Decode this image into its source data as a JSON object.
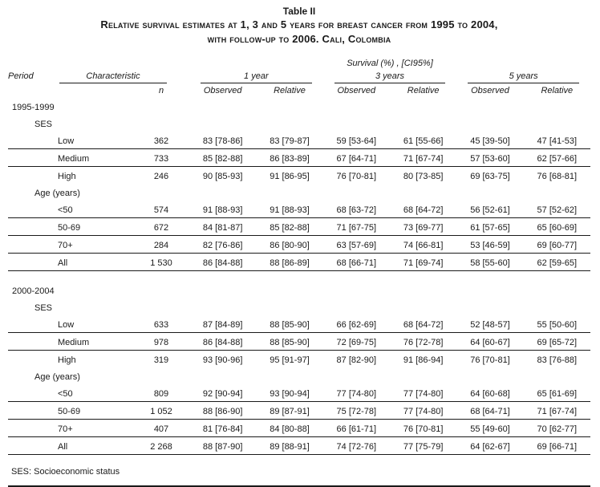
{
  "title": {
    "table_label": "Table II",
    "caption_line1": "Relative survival estimates at 1, 3 and 5 years for breast cancer from 1995 to 2004,",
    "caption_line2": "with follow-up to 2006. Cali, Colombia"
  },
  "header": {
    "survival_units": "Survival (%) , [CI95%]",
    "period": "Period",
    "characteristic": "Characteristic",
    "n": "n",
    "year_groups": [
      "1 year",
      "3 years",
      "5 years"
    ],
    "observed": "Observed",
    "relative": "Relative"
  },
  "sections": [
    {
      "period": "1995-1999",
      "groups": [
        {
          "label": "SES",
          "rows": [
            {
              "characteristic": "Low",
              "n": "362",
              "values": [
                "83 [78-86]",
                "83 [79-87]",
                "59 [53-64]",
                "61 [55-66]",
                "45 [39-50]",
                "47 [41-53]"
              ]
            },
            {
              "characteristic": "Medium",
              "n": "733",
              "values": [
                "85 [82-88]",
                "86 [83-89]",
                "67 [64-71]",
                "71 [67-74]",
                "57 [53-60]",
                "62 [57-66]"
              ]
            },
            {
              "characteristic": "High",
              "n": "246",
              "values": [
                "90 [85-93]",
                "91 [86-95]",
                "76 [70-81]",
                "80 [73-85]",
                "69 [63-75]",
                "76 [68-81]"
              ]
            }
          ]
        },
        {
          "label": "Age (years)",
          "rows": [
            {
              "characteristic": "<50",
              "n": "574",
              "values": [
                "91 [88-93]",
                "91 [88-93]",
                "68 [63-72]",
                "68 [64-72]",
                "56 [52-61]",
                "57 [52-62]"
              ]
            },
            {
              "characteristic": "50-69",
              "n": "672",
              "values": [
                "84 [81-87]",
                "85 [82-88]",
                "71 [67-75]",
                "73 [69-77]",
                "61 [57-65]",
                "65 [60-69]"
              ]
            },
            {
              "characteristic": "70+",
              "n": "284",
              "values": [
                "82 [76-86]",
                "86 [80-90]",
                "63 [57-69]",
                "74 [66-81]",
                "53 [46-59]",
                "69 [60-77]"
              ]
            },
            {
              "characteristic": "All",
              "n": "1 530",
              "values": [
                "86 [84-88]",
                "88 [86-89]",
                "68 [66-71]",
                "71 [69-74]",
                "58 [55-60]",
                "62 [59-65]"
              ]
            }
          ]
        }
      ]
    },
    {
      "period": "2000-2004",
      "groups": [
        {
          "label": "SES",
          "rows": [
            {
              "characteristic": "Low",
              "n": "633",
              "values": [
                "87 [84-89]",
                "88 [85-90]",
                "66 [62-69]",
                "68 [64-72]",
                "52 [48-57]",
                "55 [50-60]"
              ]
            },
            {
              "characteristic": "Medium",
              "n": "978",
              "values": [
                "86 [84-88]",
                "88 [85-90]",
                "72 [69-75]",
                "76 [72-78]",
                "64 [60-67]",
                "69 [65-72]"
              ]
            },
            {
              "characteristic": "High",
              "n": "319",
              "values": [
                "93 [90-96]",
                "95 [91-97]",
                "87 [82-90]",
                "91 [86-94]",
                "76 [70-81]",
                "83 [76-88]"
              ]
            }
          ]
        },
        {
          "label": "Age (years)",
          "rows": [
            {
              "characteristic": "<50",
              "n": "809",
              "values": [
                "92 [90-94]",
                "93 [90-94]",
                "77 [74-80]",
                "77 [74-80]",
                "64 [60-68]",
                "65 [61-69]"
              ]
            },
            {
              "characteristic": "50-69",
              "n": "1 052",
              "values": [
                "88 [86-90]",
                "89 [87-91]",
                "75 [72-78]",
                "77 [74-80]",
                "68 [64-71]",
                "71 [67-74]"
              ]
            },
            {
              "characteristic": "70+",
              "n": "407",
              "values": [
                "81 [76-84]",
                "84 [80-88]",
                "66 [61-71]",
                "76 [70-81]",
                "55 [49-60]",
                "70 [62-77]"
              ]
            },
            {
              "characteristic": "All",
              "n": "2 268",
              "values": [
                "88 [87-90]",
                "89 [88-91]",
                "74 [72-76]",
                "77 [75-79]",
                "64 [62-67]",
                "69 [66-71]"
              ]
            }
          ]
        }
      ]
    }
  ],
  "footnote": "SES: Socioeconomic status"
}
